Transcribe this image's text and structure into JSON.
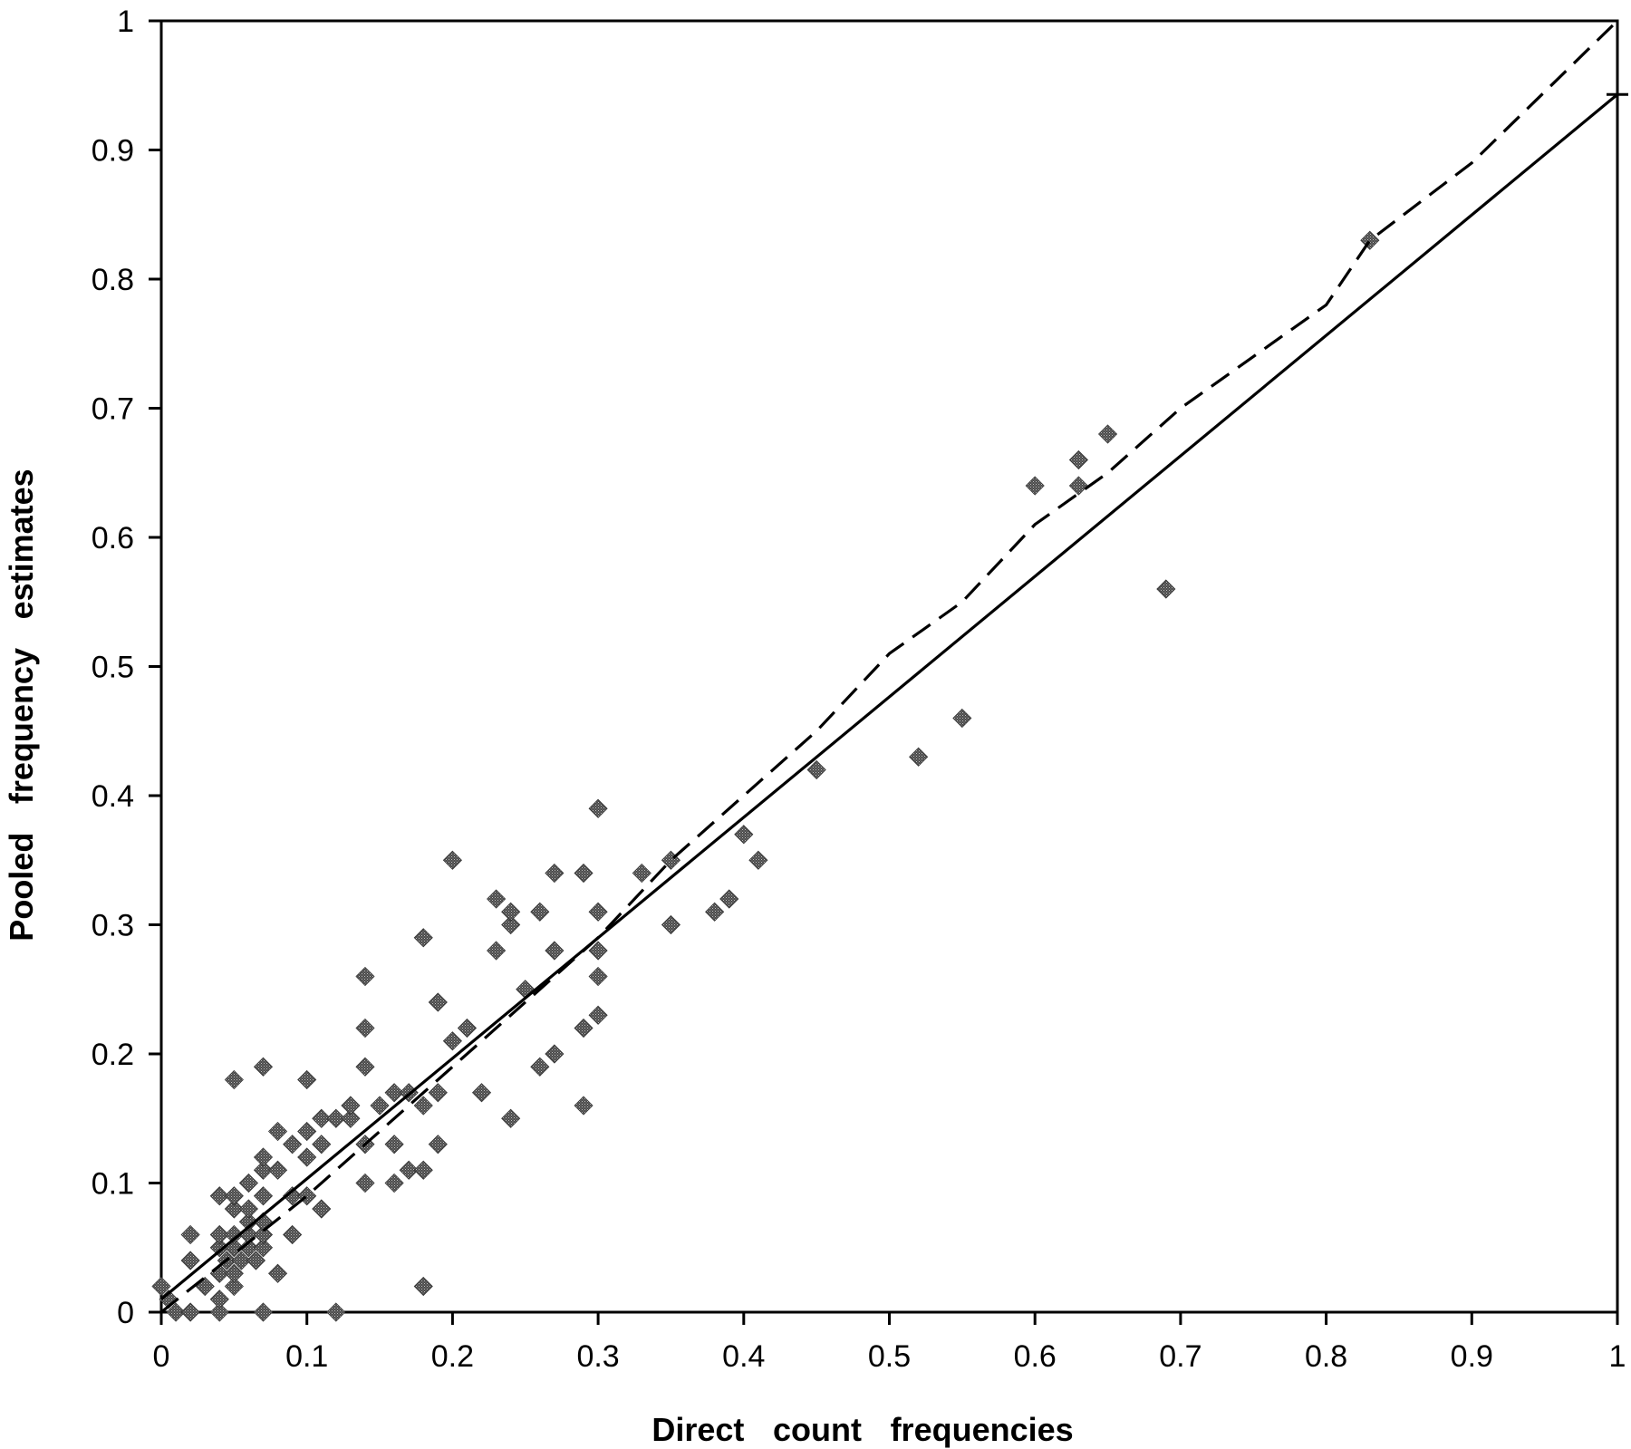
{
  "chart_data": {
    "type": "scatter",
    "title": "",
    "xlabel": "Direct count frequencies",
    "ylabel": "Pooled frequency estimates",
    "xlim": [
      0,
      1
    ],
    "ylim": [
      0,
      1
    ],
    "grid": false,
    "x_ticks": [
      "0",
      "0.1",
      "0.2",
      "0.3",
      "0.4",
      "0.5",
      "0.6",
      "0.7",
      "0.8",
      "0.9",
      "1"
    ],
    "y_ticks": [
      "0",
      "0.1",
      "0.2",
      "0.3",
      "0.4",
      "0.5",
      "0.6",
      "0.7",
      "0.8",
      "0.9",
      "1"
    ],
    "marker_color": "#555555",
    "series": [
      {
        "marker": "diamond",
        "points": [
          [
            0.0,
            0.02
          ],
          [
            0.005,
            0.01
          ],
          [
            0.01,
            0.0
          ],
          [
            0.02,
            0.0
          ],
          [
            0.02,
            0.04
          ],
          [
            0.02,
            0.06
          ],
          [
            0.03,
            0.02
          ],
          [
            0.04,
            0.0
          ],
          [
            0.04,
            0.01
          ],
          [
            0.04,
            0.03
          ],
          [
            0.04,
            0.05
          ],
          [
            0.04,
            0.06
          ],
          [
            0.04,
            0.09
          ],
          [
            0.045,
            0.04
          ],
          [
            0.05,
            0.02
          ],
          [
            0.05,
            0.03
          ],
          [
            0.05,
            0.05
          ],
          [
            0.05,
            0.06
          ],
          [
            0.05,
            0.08
          ],
          [
            0.05,
            0.09
          ],
          [
            0.05,
            0.18
          ],
          [
            0.055,
            0.04
          ],
          [
            0.06,
            0.05
          ],
          [
            0.06,
            0.06
          ],
          [
            0.06,
            0.07
          ],
          [
            0.06,
            0.08
          ],
          [
            0.06,
            0.1
          ],
          [
            0.065,
            0.04
          ],
          [
            0.07,
            0.0
          ],
          [
            0.07,
            0.05
          ],
          [
            0.07,
            0.06
          ],
          [
            0.07,
            0.07
          ],
          [
            0.07,
            0.09
          ],
          [
            0.07,
            0.11
          ],
          [
            0.07,
            0.12
          ],
          [
            0.07,
            0.19
          ],
          [
            0.08,
            0.03
          ],
          [
            0.08,
            0.11
          ],
          [
            0.08,
            0.14
          ],
          [
            0.09,
            0.06
          ],
          [
            0.09,
            0.09
          ],
          [
            0.09,
            0.13
          ],
          [
            0.1,
            0.09
          ],
          [
            0.1,
            0.12
          ],
          [
            0.1,
            0.14
          ],
          [
            0.1,
            0.18
          ],
          [
            0.11,
            0.08
          ],
          [
            0.11,
            0.13
          ],
          [
            0.11,
            0.15
          ],
          [
            0.12,
            0.0
          ],
          [
            0.12,
            0.15
          ],
          [
            0.13,
            0.15
          ],
          [
            0.13,
            0.16
          ],
          [
            0.14,
            0.1
          ],
          [
            0.14,
            0.13
          ],
          [
            0.14,
            0.19
          ],
          [
            0.14,
            0.22
          ],
          [
            0.14,
            0.26
          ],
          [
            0.15,
            0.16
          ],
          [
            0.16,
            0.1
          ],
          [
            0.16,
            0.13
          ],
          [
            0.16,
            0.17
          ],
          [
            0.17,
            0.11
          ],
          [
            0.17,
            0.17
          ],
          [
            0.18,
            0.02
          ],
          [
            0.18,
            0.11
          ],
          [
            0.18,
            0.16
          ],
          [
            0.18,
            0.29
          ],
          [
            0.19,
            0.13
          ],
          [
            0.19,
            0.17
          ],
          [
            0.19,
            0.24
          ],
          [
            0.2,
            0.21
          ],
          [
            0.2,
            0.35
          ],
          [
            0.21,
            0.22
          ],
          [
            0.22,
            0.17
          ],
          [
            0.23,
            0.28
          ],
          [
            0.23,
            0.32
          ],
          [
            0.24,
            0.15
          ],
          [
            0.24,
            0.3
          ],
          [
            0.24,
            0.31
          ],
          [
            0.25,
            0.25
          ],
          [
            0.26,
            0.19
          ],
          [
            0.26,
            0.31
          ],
          [
            0.27,
            0.2
          ],
          [
            0.27,
            0.28
          ],
          [
            0.27,
            0.34
          ],
          [
            0.29,
            0.16
          ],
          [
            0.29,
            0.22
          ],
          [
            0.29,
            0.34
          ],
          [
            0.3,
            0.23
          ],
          [
            0.3,
            0.26
          ],
          [
            0.3,
            0.28
          ],
          [
            0.3,
            0.31
          ],
          [
            0.3,
            0.39
          ],
          [
            0.33,
            0.34
          ],
          [
            0.35,
            0.3
          ],
          [
            0.35,
            0.35
          ],
          [
            0.38,
            0.31
          ],
          [
            0.39,
            0.32
          ],
          [
            0.4,
            0.37
          ],
          [
            0.41,
            0.35
          ],
          [
            0.45,
            0.42
          ],
          [
            0.52,
            0.43
          ],
          [
            0.55,
            0.46
          ],
          [
            0.6,
            0.64
          ],
          [
            0.63,
            0.64
          ],
          [
            0.63,
            0.66
          ],
          [
            0.65,
            0.68
          ],
          [
            0.69,
            0.56
          ],
          [
            0.83,
            0.83
          ]
        ]
      }
    ],
    "lines": [
      {
        "style": "solid",
        "points": [
          [
            0,
            0.01
          ],
          [
            1,
            0.943
          ]
        ]
      },
      {
        "style": "dashed",
        "points": [
          [
            0,
            0.0
          ],
          [
            0.1,
            0.09
          ],
          [
            0.2,
            0.19
          ],
          [
            0.3,
            0.29
          ],
          [
            0.35,
            0.35
          ],
          [
            0.4,
            0.4
          ],
          [
            0.45,
            0.45
          ],
          [
            0.5,
            0.51
          ],
          [
            0.55,
            0.55
          ],
          [
            0.6,
            0.61
          ],
          [
            0.65,
            0.65
          ],
          [
            0.7,
            0.7
          ],
          [
            0.8,
            0.78
          ],
          [
            0.83,
            0.83
          ],
          [
            0.9,
            0.89
          ],
          [
            1,
            1.0
          ]
        ]
      }
    ]
  }
}
